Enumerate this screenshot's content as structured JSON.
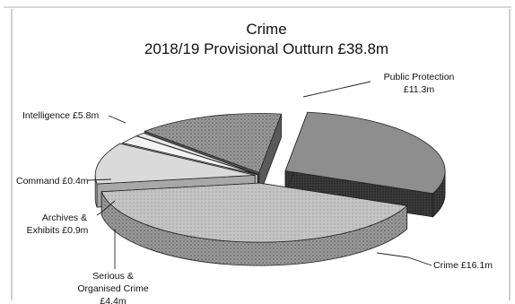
{
  "chart_data": {
    "type": "pie",
    "title": "Crime",
    "subtitle": "2018/19 Provisional Outturn £38.8m",
    "slices": [
      {
        "name": "Public Protection",
        "value": 11.3,
        "label": "£11.3m",
        "color": "#8c8c8c"
      },
      {
        "name": "Crime",
        "value": 16.1,
        "label": "£16.1m",
        "color": "#b3b3b3"
      },
      {
        "name": "Serious & Organised Crime",
        "value": 4.4,
        "label": "£4.4m",
        "color": "#d8d8d8"
      },
      {
        "name": "Archives & Exhibits",
        "value": 0.9,
        "label": "£0.9m",
        "color": "#f0f0f0"
      },
      {
        "name": "Command",
        "value": 0.4,
        "label": "£0.4m",
        "color": "#e4e4e4"
      },
      {
        "name": "Intelligence",
        "value": 5.8,
        "label": "£5.8m",
        "color": "#9a9a9a"
      }
    ],
    "label_text": {
      "public_protection": [
        "Public Protection",
        "£11.3m"
      ],
      "crime": [
        "Crime  £16.1m"
      ],
      "serious": [
        "Serious &",
        "Organised Crime",
        "£4.4m"
      ],
      "archives": [
        "Archives &",
        "Exhibits  £0.9m"
      ],
      "command": [
        "Command  £0.4m"
      ],
      "intelligence": [
        "Intelligence  £5.8m"
      ]
    }
  }
}
